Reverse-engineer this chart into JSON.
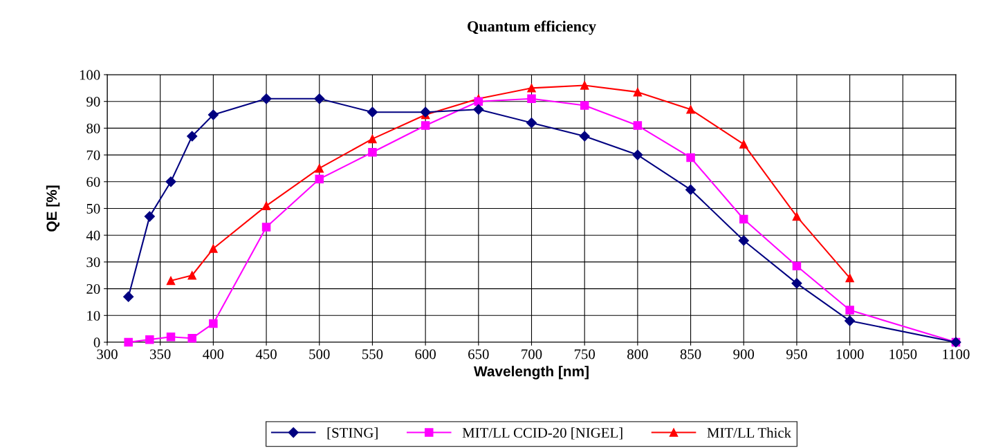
{
  "chart_data": {
    "type": "line",
    "title": "Quantum efficiency",
    "xlabel": "Wavelength [nm]",
    "ylabel": "QE [%]",
    "x": [
      320,
      340,
      360,
      380,
      400,
      450,
      500,
      550,
      600,
      650,
      700,
      750,
      800,
      850,
      900,
      950,
      1000,
      1100
    ],
    "series": [
      {
        "name": "[STING]",
        "color": "#000080",
        "marker": "diamond",
        "values": [
          17,
          47,
          60,
          77,
          85,
          91,
          91,
          86,
          86,
          87,
          82,
          77,
          70,
          57,
          38,
          22,
          8,
          0
        ]
      },
      {
        "name": "MIT/LL CCID-20 [NIGEL]",
        "color": "#ff00ff",
        "marker": "square",
        "values": [
          0,
          1,
          2,
          1.5,
          7,
          43,
          61,
          71,
          81,
          90,
          91,
          88.5,
          81,
          69,
          46,
          28.5,
          12,
          0
        ]
      },
      {
        "name": "MIT/LL Thick",
        "color": "#ff0000",
        "marker": "triangle",
        "x": [
          360,
          380,
          400,
          450,
          500,
          550,
          600,
          650,
          700,
          750,
          800,
          850,
          900,
          950,
          1000
        ],
        "values": [
          23,
          25,
          35,
          51,
          65,
          76,
          85,
          91,
          95,
          96,
          93.5,
          87,
          74,
          47,
          24
        ]
      }
    ],
    "xlim": [
      300,
      1100
    ],
    "xticks": [
      300,
      350,
      400,
      450,
      500,
      550,
      600,
      650,
      700,
      750,
      800,
      850,
      900,
      950,
      1000,
      1050,
      1100
    ],
    "ylim": [
      0,
      100
    ],
    "yticks": [
      0,
      10,
      20,
      30,
      40,
      50,
      60,
      70,
      80,
      90,
      100
    ],
    "grid": true,
    "legend": "bottom",
    "line_style": "solid"
  }
}
